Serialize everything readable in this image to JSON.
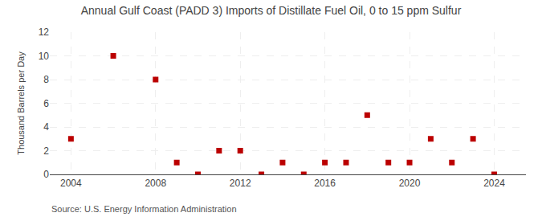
{
  "chart_data": {
    "type": "scatter",
    "title": "Annual Gulf Coast (PADD 3) Imports of Distillate Fuel Oil, 0 to 15 ppm Sulfur",
    "ylabel": "Thousand Barrels per Day",
    "annotations": [
      "Source: U.S. Energy Information Administration"
    ],
    "x": [
      2004,
      2006,
      2008,
      2009,
      2010,
      2011,
      2012,
      2013,
      2014,
      2015,
      2016,
      2017,
      2018,
      2019,
      2020,
      2021,
      2022,
      2023,
      2024
    ],
    "values": [
      3,
      10,
      8,
      1,
      0,
      2,
      2,
      0,
      1,
      0,
      1,
      1,
      5,
      1,
      1,
      3,
      1,
      3,
      0
    ],
    "color": "#bb0000",
    "marker": "square",
    "xlim": [
      2003.0,
      2025.5
    ],
    "ylim": [
      0,
      12
    ],
    "xticks": [
      2004,
      2008,
      2012,
      2016,
      2020,
      2024
    ],
    "yticks": [
      0,
      2,
      4,
      6,
      8,
      10,
      12
    ],
    "grid": true
  }
}
